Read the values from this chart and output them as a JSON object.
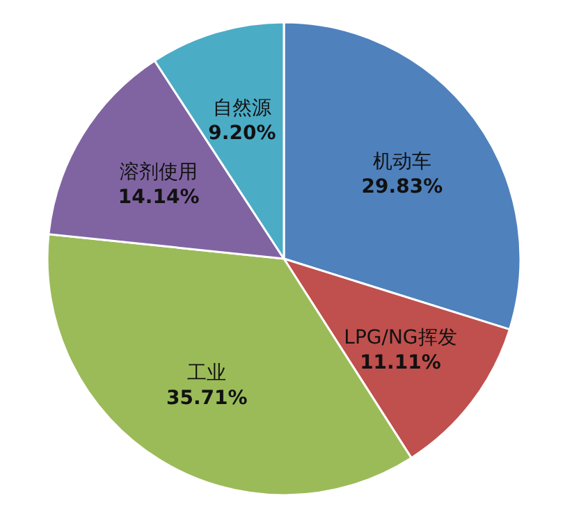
{
  "chart_data": {
    "type": "pie",
    "categories": [
      "机动车",
      "LPG/NG挥发",
      "工业",
      "溶剂使用",
      "自然源"
    ],
    "values": [
      29.83,
      11.11,
      35.71,
      14.14,
      9.2
    ],
    "value_labels": [
      "29.83%",
      "11.11%",
      "35.71%",
      "14.14%",
      "9.20%"
    ],
    "colors": [
      "#4f81bd",
      "#c0504d",
      "#9bbb59",
      "#8064a2",
      "#4bacc6"
    ]
  }
}
